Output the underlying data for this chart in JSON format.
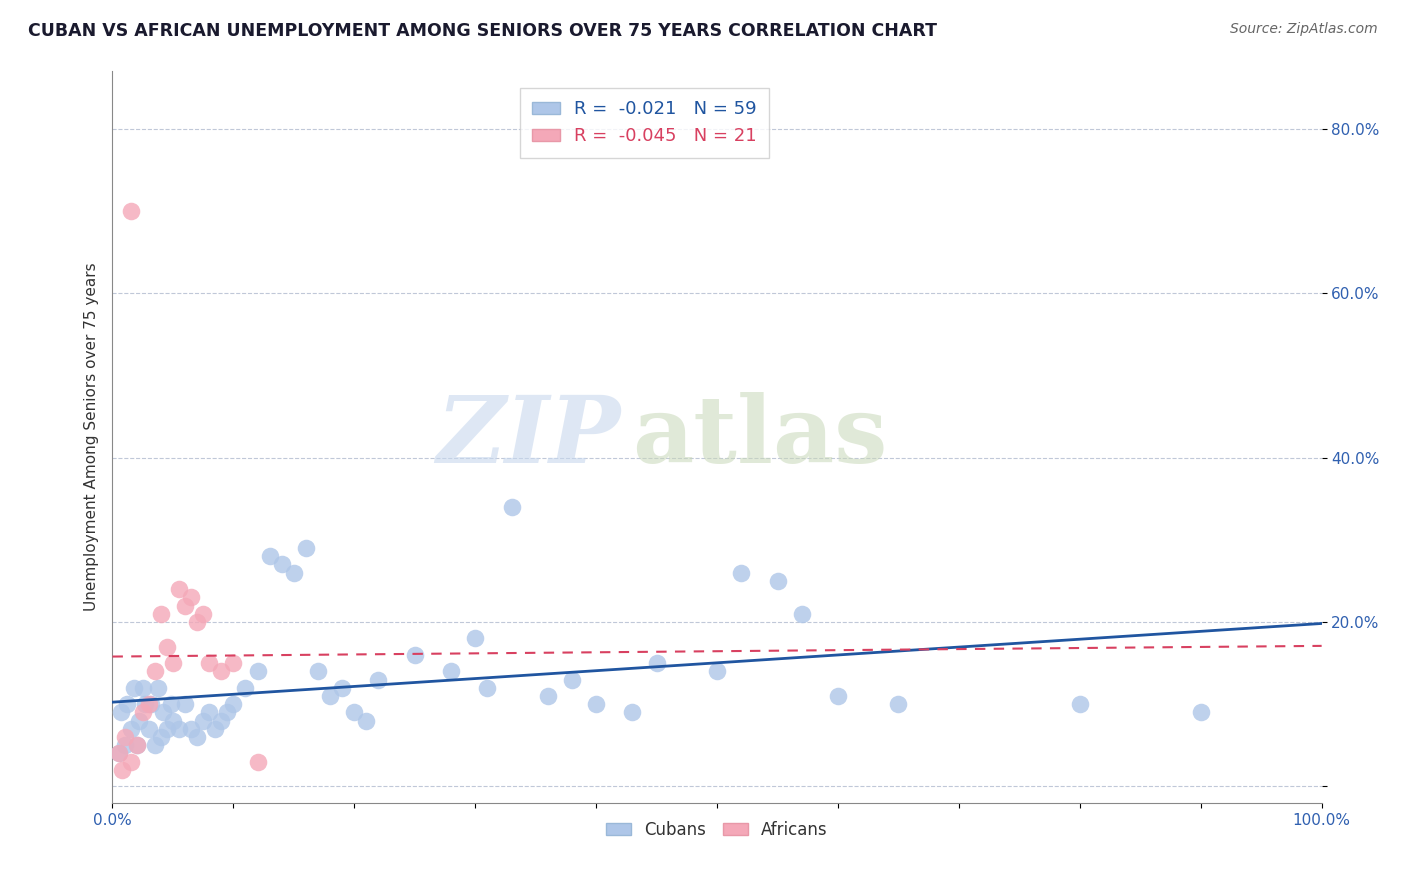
{
  "title": "CUBAN VS AFRICAN UNEMPLOYMENT AMONG SENIORS OVER 75 YEARS CORRELATION CHART",
  "source": "Source: ZipAtlas.com",
  "ylabel": "Unemployment Among Seniors over 75 years",
  "xlim": [
    0.0,
    1.0
  ],
  "ylim": [
    -0.02,
    0.87
  ],
  "xticks": [
    0.0,
    0.1,
    0.2,
    0.3,
    0.4,
    0.5,
    0.6,
    0.7,
    0.8,
    0.9,
    1.0
  ],
  "xticklabels": [
    "0.0%",
    "",
    "",
    "",
    "",
    "",
    "",
    "",
    "",
    "",
    "100.0%"
  ],
  "yticks": [
    0.0,
    0.2,
    0.4,
    0.6,
    0.8
  ],
  "yticklabels": [
    "",
    "20.0%",
    "40.0%",
    "60.0%",
    "80.0%"
  ],
  "cubans_R": "-0.021",
  "cubans_N": "59",
  "africans_R": "-0.045",
  "africans_N": "21",
  "cubans_color": "#aec6e8",
  "africans_color": "#f4a8b8",
  "cubans_line_color": "#2055a0",
  "africans_line_color": "#d84060",
  "background_color": "#ffffff",
  "cubans_x": [
    0.005,
    0.007,
    0.01,
    0.012,
    0.015,
    0.018,
    0.02,
    0.022,
    0.025,
    0.027,
    0.03,
    0.032,
    0.035,
    0.038,
    0.04,
    0.042,
    0.045,
    0.048,
    0.05,
    0.055,
    0.06,
    0.065,
    0.07,
    0.075,
    0.08,
    0.085,
    0.09,
    0.095,
    0.1,
    0.11,
    0.12,
    0.13,
    0.14,
    0.15,
    0.16,
    0.17,
    0.18,
    0.19,
    0.2,
    0.21,
    0.22,
    0.25,
    0.28,
    0.3,
    0.31,
    0.33,
    0.36,
    0.38,
    0.4,
    0.43,
    0.45,
    0.5,
    0.52,
    0.55,
    0.57,
    0.6,
    0.65,
    0.8,
    0.9
  ],
  "cubans_y": [
    0.04,
    0.09,
    0.05,
    0.1,
    0.07,
    0.12,
    0.05,
    0.08,
    0.12,
    0.1,
    0.07,
    0.1,
    0.05,
    0.12,
    0.06,
    0.09,
    0.07,
    0.1,
    0.08,
    0.07,
    0.1,
    0.07,
    0.06,
    0.08,
    0.09,
    0.07,
    0.08,
    0.09,
    0.1,
    0.12,
    0.14,
    0.28,
    0.27,
    0.26,
    0.29,
    0.14,
    0.11,
    0.12,
    0.09,
    0.08,
    0.13,
    0.16,
    0.14,
    0.18,
    0.12,
    0.34,
    0.11,
    0.13,
    0.1,
    0.09,
    0.15,
    0.14,
    0.26,
    0.25,
    0.21,
    0.11,
    0.1,
    0.1,
    0.09
  ],
  "africans_x": [
    0.005,
    0.008,
    0.01,
    0.015,
    0.02,
    0.025,
    0.03,
    0.035,
    0.04,
    0.045,
    0.05,
    0.055,
    0.06,
    0.065,
    0.07,
    0.075,
    0.08,
    0.09,
    0.1,
    0.12,
    0.015
  ],
  "africans_y": [
    0.04,
    0.02,
    0.06,
    0.03,
    0.05,
    0.09,
    0.1,
    0.14,
    0.21,
    0.17,
    0.15,
    0.24,
    0.22,
    0.23,
    0.2,
    0.21,
    0.15,
    0.14,
    0.15,
    0.03,
    0.7
  ]
}
